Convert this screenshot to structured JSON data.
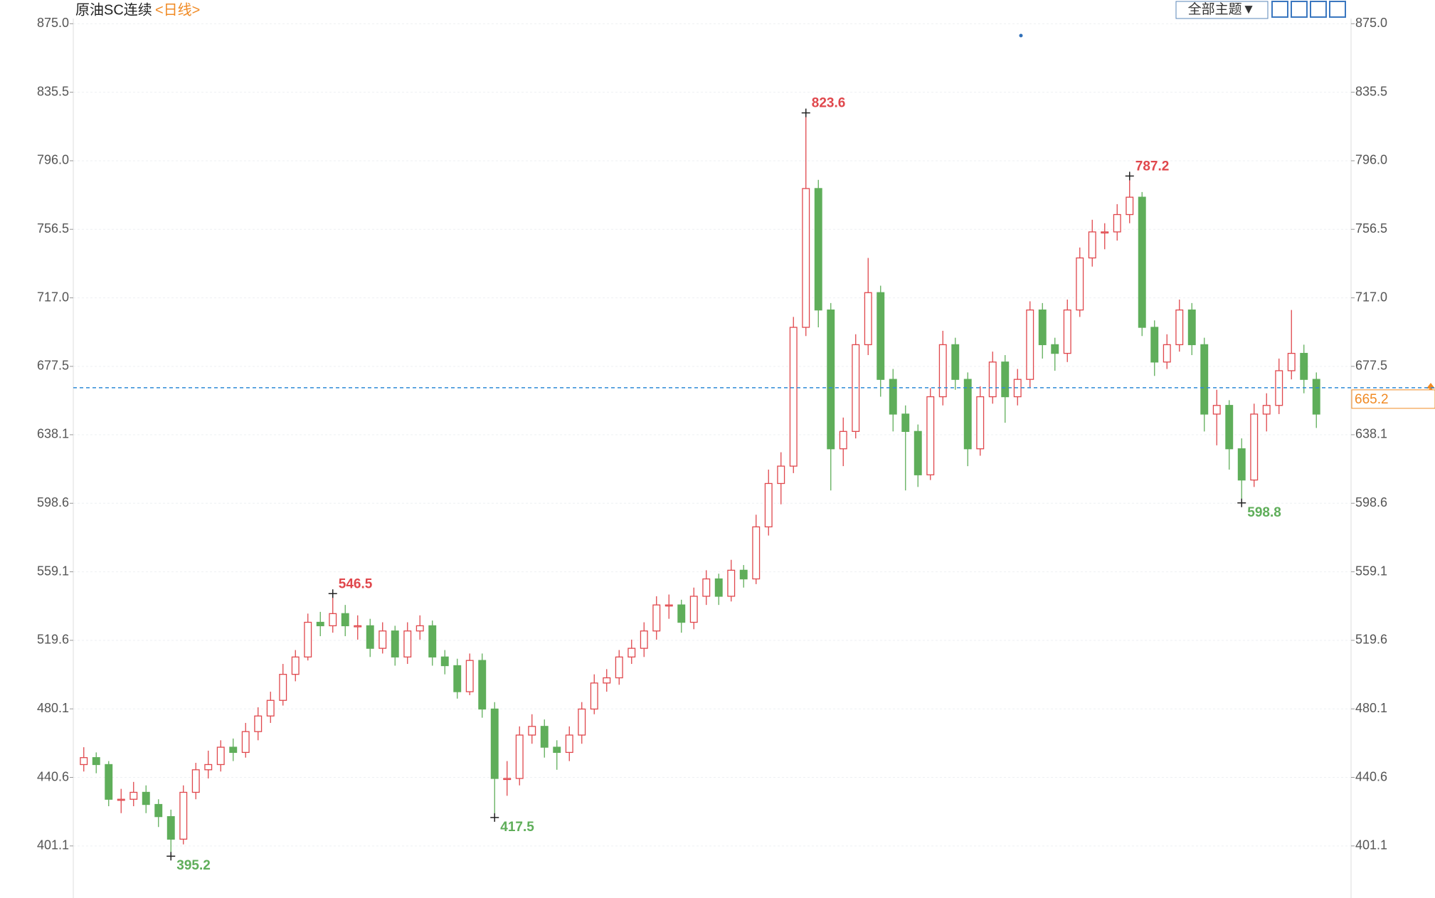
{
  "chart_data": {
    "type": "candlestick",
    "title": "原油SC连续",
    "subtitle": "<日线>",
    "open": [
      448,
      452,
      448,
      428,
      428,
      432,
      425,
      418,
      405,
      432,
      445,
      448,
      458,
      455,
      467,
      476,
      485,
      500,
      510,
      530,
      528,
      535,
      528,
      528,
      515,
      525,
      510,
      525,
      528,
      510,
      505,
      490,
      508,
      480,
      440,
      440,
      465,
      470,
      458,
      455,
      465,
      480,
      495,
      498,
      510,
      515,
      525,
      540,
      540,
      530,
      545,
      555,
      545,
      560,
      555,
      585,
      610,
      620,
      700,
      780,
      710,
      630,
      640,
      690,
      720,
      670,
      650,
      640,
      615,
      660,
      690,
      670,
      630,
      660,
      680,
      660,
      670,
      710,
      690,
      685,
      710,
      740,
      755,
      755,
      765,
      775,
      700,
      680,
      690,
      710,
      690,
      650,
      655,
      630,
      612,
      650,
      655,
      675,
      685,
      670
    ],
    "high": [
      458,
      455,
      450,
      434,
      438,
      436,
      428,
      422,
      436,
      449,
      456,
      462,
      463,
      472,
      481,
      490,
      506,
      514,
      535,
      536,
      546.5,
      540,
      534,
      532,
      530,
      528,
      530,
      534,
      531,
      514,
      509,
      512,
      512,
      484,
      450,
      470,
      477,
      474,
      462,
      470,
      484,
      500,
      503,
      514,
      520,
      530,
      545,
      546,
      543,
      550,
      560,
      558,
      566,
      563,
      592,
      618,
      628,
      706,
      823.6,
      785,
      714,
      648,
      696,
      740,
      724,
      676,
      655,
      644,
      665,
      698,
      694,
      674,
      666,
      686,
      684,
      676,
      715,
      714,
      694,
      716,
      746,
      762,
      760,
      771,
      787.2,
      778,
      704,
      696,
      716,
      714,
      694,
      664,
      658,
      636,
      656,
      662,
      682,
      710,
      690,
      674
    ],
    "low": [
      444,
      443,
      424,
      420,
      424,
      420,
      412,
      395.2,
      402,
      428,
      440,
      444,
      450,
      452,
      462,
      472,
      482,
      496,
      508,
      522,
      524,
      522,
      520,
      510,
      512,
      505,
      506,
      520,
      505,
      500,
      486,
      488,
      475,
      417.5,
      430,
      436,
      460,
      452,
      445,
      450,
      460,
      477,
      490,
      494,
      506,
      510,
      520,
      532,
      524,
      526,
      540,
      540,
      542,
      550,
      552,
      580,
      598,
      616,
      695,
      700,
      606,
      620,
      636,
      684,
      660,
      640,
      606,
      608,
      612,
      655,
      664,
      620,
      626,
      656,
      645,
      655,
      665,
      682,
      675,
      680,
      706,
      735,
      745,
      750,
      760,
      695,
      672,
      676,
      686,
      684,
      640,
      632,
      618,
      598.8,
      608,
      640,
      650,
      670,
      662,
      642
    ],
    "close": [
      452,
      448,
      428,
      428,
      432,
      425,
      418,
      405,
      432,
      445,
      448,
      458,
      455,
      467,
      476,
      485,
      500,
      510,
      530,
      528,
      535,
      528,
      528,
      515,
      525,
      510,
      525,
      528,
      510,
      505,
      490,
      508,
      480,
      440,
      440,
      465,
      470,
      458,
      455,
      465,
      480,
      495,
      498,
      510,
      515,
      525,
      540,
      540,
      530,
      545,
      555,
      545,
      560,
      555,
      585,
      610,
      620,
      700,
      780,
      710,
      630,
      640,
      690,
      720,
      670,
      650,
      640,
      615,
      660,
      690,
      670,
      630,
      660,
      680,
      660,
      670,
      710,
      690,
      685,
      710,
      740,
      755,
      755,
      765,
      775,
      700,
      680,
      690,
      710,
      690,
      650,
      655,
      630,
      612,
      650,
      655,
      675,
      685,
      670,
      650
    ],
    "up_color": "#e0474c",
    "down_color": "#5fae5a",
    "ylim": [
      371.5,
      878
    ],
    "yticks": [
      {
        "value": 875.0,
        "label": "875.0"
      },
      835.5,
      {
        "value": 796.0,
        "label": "796.0"
      },
      756.5,
      {
        "value": 717.0,
        "label": "717.0"
      },
      677.5,
      638.1,
      598.6,
      559.1,
      519.6,
      480.1,
      440.6,
      401.1
    ],
    "grid": true,
    "high_labels": [
      546.5,
      823.6,
      787.2
    ],
    "low_labels": [
      395.2,
      417.5,
      598.8
    ],
    "last_price": 665.2,
    "last_price_color": "#2f8ad8"
  },
  "toolbar": {
    "theme_button": "全部主题▼"
  }
}
